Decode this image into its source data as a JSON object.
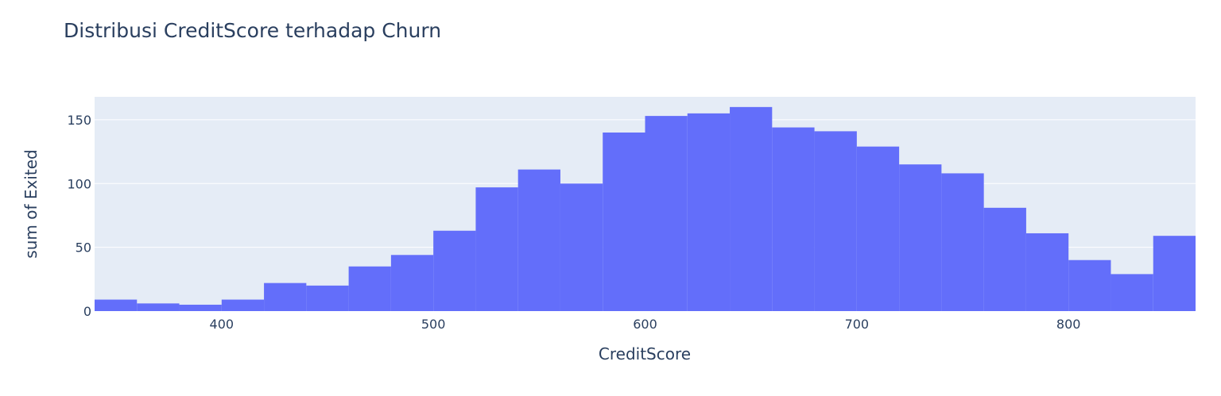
{
  "chart_data": {
    "type": "bar",
    "title": "Distribusi CreditScore terhadap Churn",
    "xlabel": "CreditScore",
    "ylabel": "sum of Exited",
    "xlim": [
      340,
      860
    ],
    "ylim": [
      0,
      168
    ],
    "bin_width": 20,
    "x_ticks": [
      400,
      500,
      600,
      700,
      800
    ],
    "y_ticks": [
      0,
      50,
      100,
      150
    ],
    "bins": [
      {
        "start": 340,
        "end": 360,
        "value": 9
      },
      {
        "start": 360,
        "end": 380,
        "value": 6
      },
      {
        "start": 380,
        "end": 400,
        "value": 5
      },
      {
        "start": 400,
        "end": 420,
        "value": 9
      },
      {
        "start": 420,
        "end": 440,
        "value": 22
      },
      {
        "start": 440,
        "end": 460,
        "value": 20
      },
      {
        "start": 460,
        "end": 480,
        "value": 35
      },
      {
        "start": 480,
        "end": 500,
        "value": 44
      },
      {
        "start": 500,
        "end": 520,
        "value": 63
      },
      {
        "start": 520,
        "end": 540,
        "value": 97
      },
      {
        "start": 540,
        "end": 560,
        "value": 111
      },
      {
        "start": 560,
        "end": 580,
        "value": 100
      },
      {
        "start": 580,
        "end": 600,
        "value": 140
      },
      {
        "start": 600,
        "end": 620,
        "value": 153
      },
      {
        "start": 620,
        "end": 640,
        "value": 155
      },
      {
        "start": 640,
        "end": 660,
        "value": 160
      },
      {
        "start": 660,
        "end": 680,
        "value": 144
      },
      {
        "start": 680,
        "end": 700,
        "value": 141
      },
      {
        "start": 700,
        "end": 720,
        "value": 129
      },
      {
        "start": 720,
        "end": 740,
        "value": 115
      },
      {
        "start": 740,
        "end": 760,
        "value": 108
      },
      {
        "start": 760,
        "end": 780,
        "value": 81
      },
      {
        "start": 780,
        "end": 800,
        "value": 61
      },
      {
        "start": 800,
        "end": 820,
        "value": 40
      },
      {
        "start": 820,
        "end": 840,
        "value": 29
      },
      {
        "start": 840,
        "end": 860,
        "value": 59
      }
    ],
    "grid": true,
    "legend": "none",
    "colors": {
      "bar": "#636efa",
      "plot_bg": "#e5ecf6",
      "grid": "#ffffff",
      "text": "#2a3f5f",
      "title": "#2a3f5f"
    }
  }
}
